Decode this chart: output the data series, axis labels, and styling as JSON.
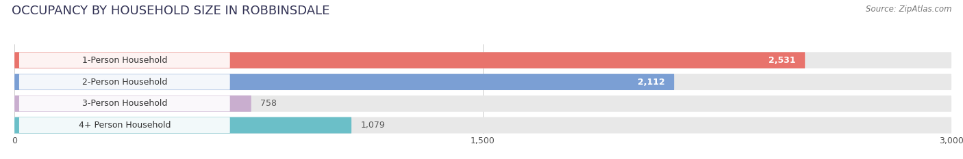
{
  "title": "OCCUPANCY BY HOUSEHOLD SIZE IN ROBBINSDALE",
  "source": "Source: ZipAtlas.com",
  "categories": [
    "1-Person Household",
    "2-Person Household",
    "3-Person Household",
    "4+ Person Household"
  ],
  "values": [
    2531,
    2112,
    758,
    1079
  ],
  "bar_colors": [
    "#E8736C",
    "#7B9FD4",
    "#C9AECF",
    "#6BBFC8"
  ],
  "value_inside": [
    true,
    true,
    false,
    false
  ],
  "xlim": [
    0,
    3000
  ],
  "xticks": [
    0,
    1500,
    3000
  ],
  "background_color": "#ffffff",
  "bar_bg_color": "#e8e8e8",
  "title_fontsize": 13,
  "source_fontsize": 8.5,
  "label_fontsize": 9,
  "value_fontsize": 9
}
